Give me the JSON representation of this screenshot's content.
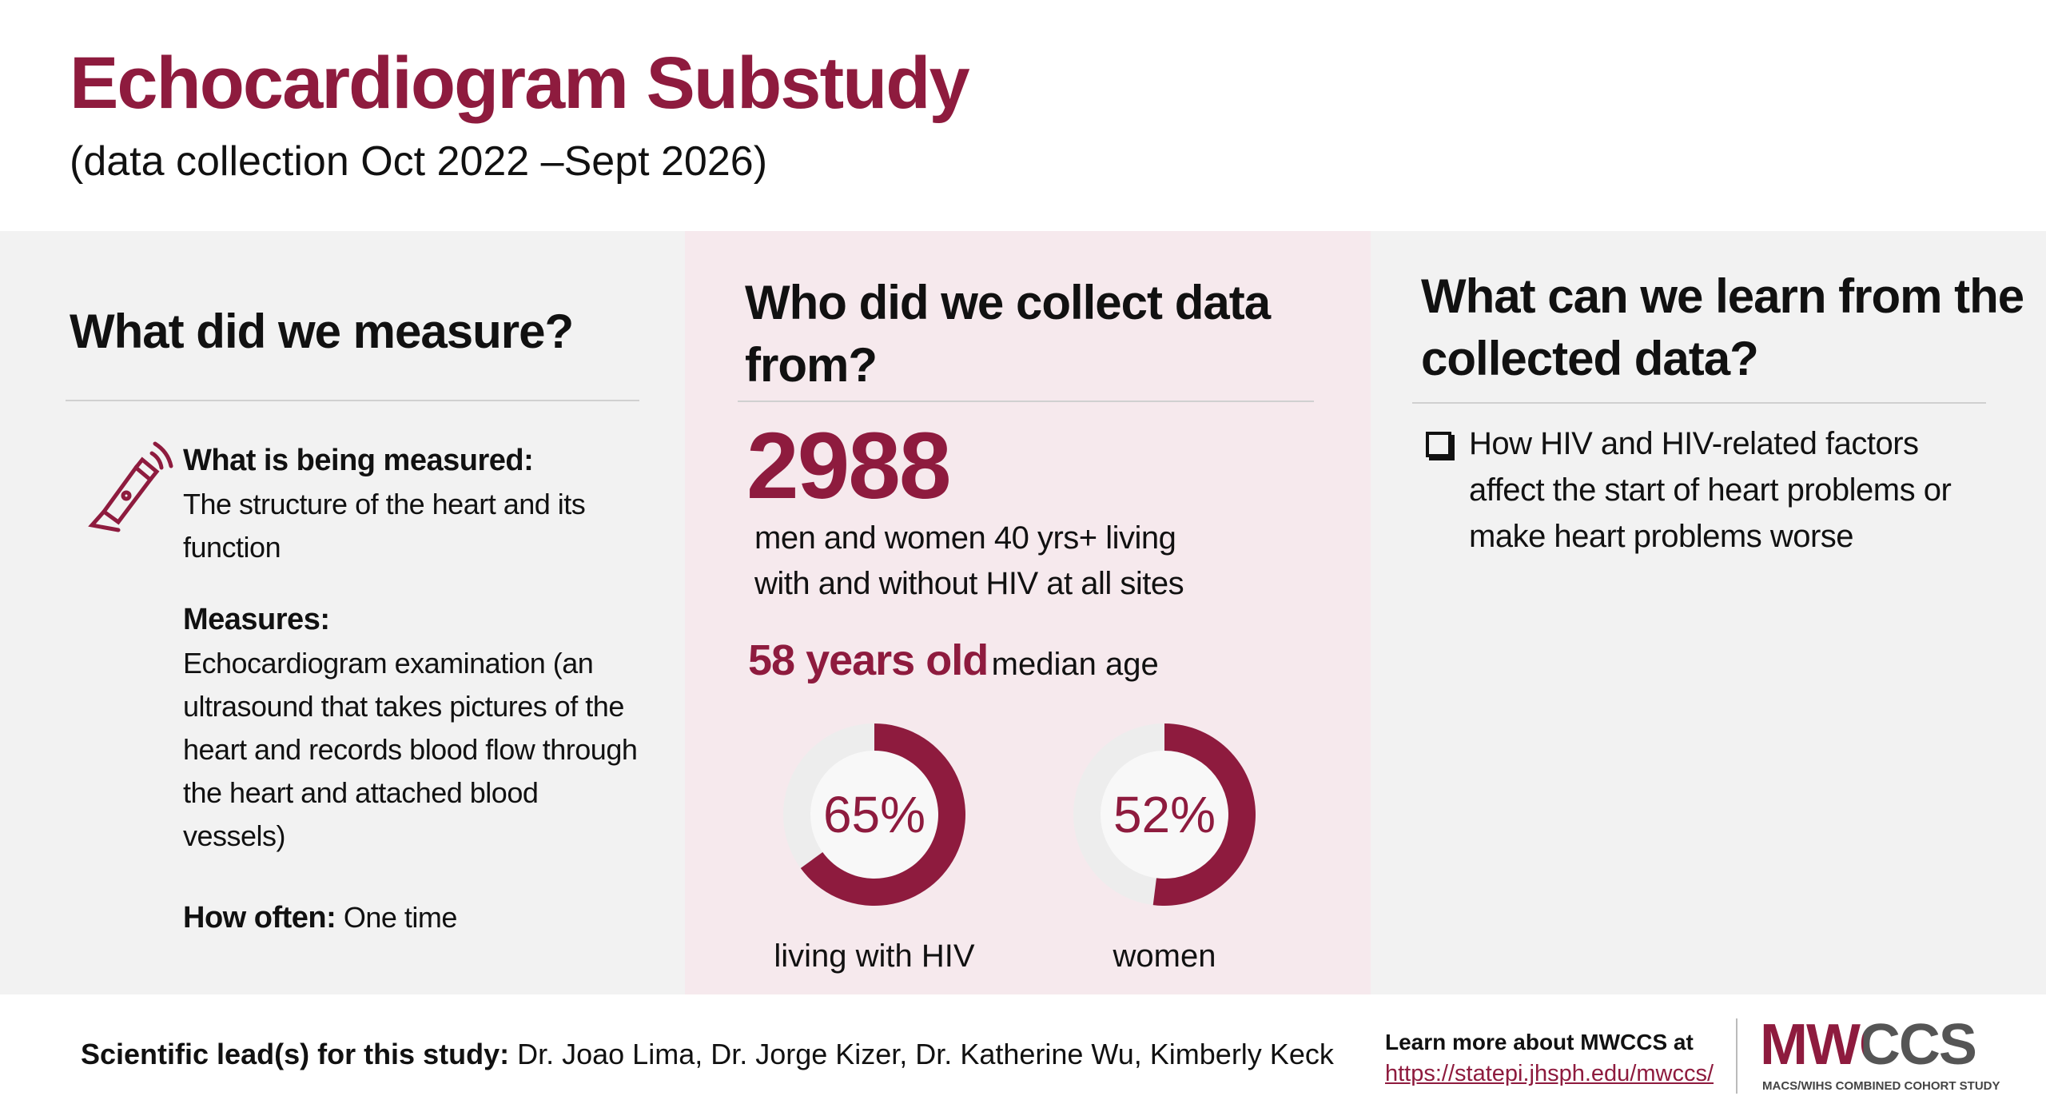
{
  "header": {
    "title": "Echocardiogram Substudy",
    "subtitle": "(data collection Oct 2022 –Sept 2026)"
  },
  "measure": {
    "heading": "What did we measure?",
    "what_label": "What is being measured:",
    "what_text": "The structure of the heart and its function",
    "measures_label": "Measures:",
    "measures_text": "Echocardiogram examination (an ultrasound that takes pictures of the heart and records blood flow through the heart and attached blood vessels)",
    "how_often_label": "How often:",
    "how_often_text": "One time"
  },
  "who": {
    "heading": "Who did we collect data from?",
    "count": "2988",
    "count_text": "men and women 40 yrs+ living with and without HIV at all sites",
    "age": "58 years old",
    "age_text": "median age",
    "donuts": [
      {
        "value": 65,
        "value_label": "65%",
        "caption": "living with HIV"
      },
      {
        "value": 52,
        "value_label": "52%",
        "caption": "women"
      }
    ]
  },
  "learn": {
    "heading": "What can we learn from the collected data?",
    "bullets": [
      "How HIV and HIV-related factors affect the start of heart problems or make heart problems worse"
    ]
  },
  "footer": {
    "lead_label": "Scientific lead(s) for this study:",
    "leads": "Dr. Joao Lima, Dr. Jorge Kizer, Dr. Katherine Wu, Kimberly Keck",
    "learn_more": "Learn more about MWCCS at",
    "url": "https://statepi.jhsph.edu/mwccs/",
    "logo": "MWCCS",
    "logo_tagline": "MACS/WIHS COMBINED COHORT STUDY"
  }
}
